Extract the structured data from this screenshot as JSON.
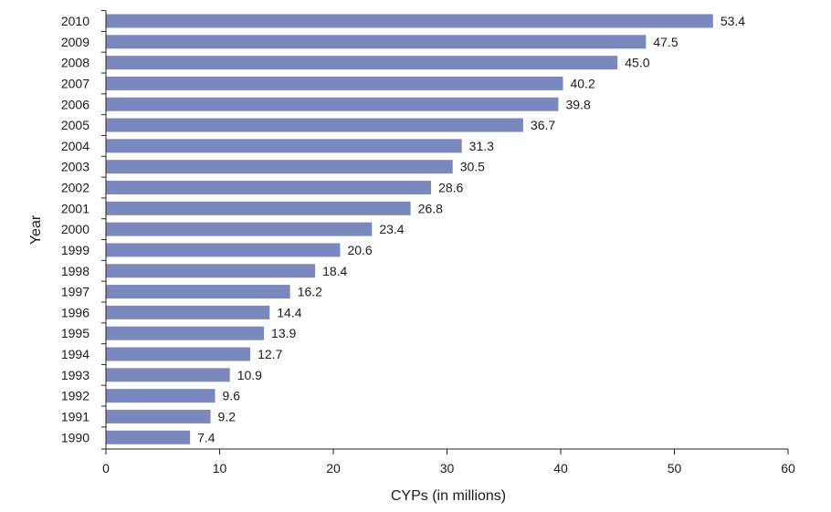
{
  "chart_data": {
    "type": "bar",
    "orientation": "horizontal",
    "categories": [
      "2010",
      "2009",
      "2008",
      "2007",
      "2006",
      "2005",
      "2004",
      "2003",
      "2002",
      "2001",
      "2000",
      "1999",
      "1998",
      "1997",
      "1996",
      "1995",
      "1994",
      "1993",
      "1992",
      "1991",
      "1990"
    ],
    "values": [
      53.4,
      47.5,
      45.0,
      40.2,
      39.8,
      36.7,
      31.3,
      30.5,
      28.6,
      26.8,
      23.4,
      20.6,
      18.4,
      16.2,
      14.4,
      13.9,
      12.7,
      10.9,
      9.6,
      9.2,
      7.4
    ],
    "value_labels": [
      "53.4",
      "47.5",
      "45.0",
      "40.2",
      "39.8",
      "36.7",
      "31.3",
      "30.5",
      "28.6",
      "26.8",
      "23.4",
      "20.6",
      "18.4",
      "16.2",
      "14.4",
      "13.9",
      "12.7",
      "10.9",
      "9.6",
      "9.2",
      "7.4"
    ],
    "xlabel": "CYPs (in millions)",
    "ylabel": "Year",
    "xlim": [
      0,
      60
    ],
    "xticks": [
      "0",
      "10",
      "20",
      "30",
      "40",
      "50",
      "60"
    ],
    "grid": false,
    "legend": "none",
    "bar_color": "#7b88bd"
  }
}
